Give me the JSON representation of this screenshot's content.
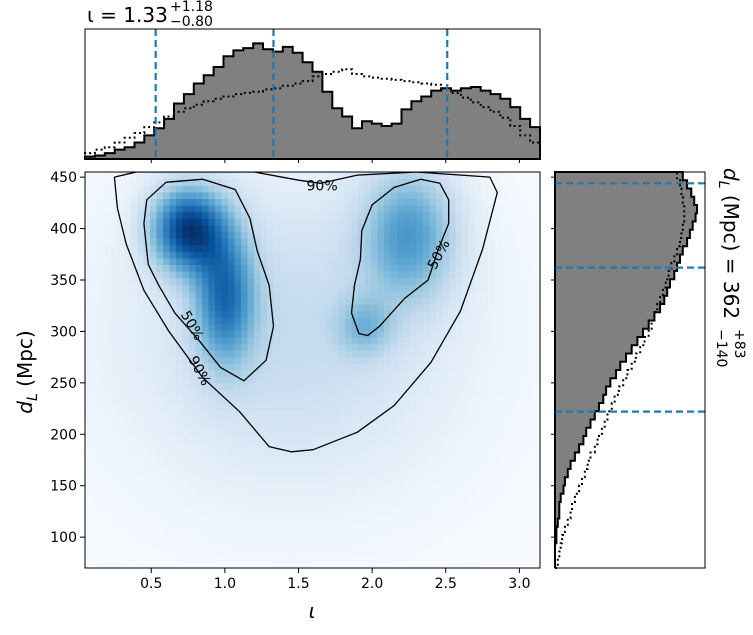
{
  "chart_data": [
    {
      "type": "heatmap",
      "panel": "joint",
      "xlabel": "ι",
      "ylabel_main": "d",
      "ylabel_sub": "L",
      "ylabel_unit": "(Mpc)",
      "xlim": [
        0.05,
        3.14
      ],
      "ylim": [
        70,
        455
      ],
      "x_ticks": [
        {
          "value": 0.5,
          "label": "0.5"
        },
        {
          "value": 1.0,
          "label": "1.0"
        },
        {
          "value": 1.5,
          "label": "1.5"
        },
        {
          "value": 2.0,
          "label": "2.0"
        },
        {
          "value": 2.5,
          "label": "2.5"
        },
        {
          "value": 3.0,
          "label": "3.0"
        }
      ],
      "y_ticks": [
        {
          "value": 100,
          "label": "100"
        },
        {
          "value": 150,
          "label": "150"
        },
        {
          "value": 200,
          "label": "200"
        },
        {
          "value": 250,
          "label": "250"
        },
        {
          "value": 300,
          "label": "300"
        },
        {
          "value": 350,
          "label": "350"
        },
        {
          "value": 400,
          "label": "400"
        },
        {
          "value": 450,
          "label": "450"
        }
      ],
      "colormap": "Blues",
      "density_modes": [
        {
          "x": 0.75,
          "y": 400,
          "sx": 0.17,
          "sy": 28,
          "w": 1.0
        },
        {
          "x": 1.0,
          "y": 335,
          "sx": 0.14,
          "sy": 45,
          "w": 0.7
        },
        {
          "x": 2.25,
          "y": 395,
          "sx": 0.22,
          "sy": 45,
          "w": 0.55
        },
        {
          "x": 1.95,
          "y": 305,
          "sx": 0.13,
          "sy": 20,
          "w": 0.3
        },
        {
          "x": 1.45,
          "y": 300,
          "sx": 0.75,
          "sy": 100,
          "w": 0.22
        }
      ],
      "contours": [
        {
          "level": "90%",
          "label_positions": [
            {
              "x": 1.66,
              "y": 442,
              "angle": 0
            },
            {
              "x": 0.83,
              "y": 262,
              "angle": 62
            }
          ],
          "path": [
            [
              0.25,
              450
            ],
            [
              0.27,
              420
            ],
            [
              0.33,
              385
            ],
            [
              0.45,
              340
            ],
            [
              0.62,
              300
            ],
            [
              0.85,
              255
            ],
            [
              1.1,
              222
            ],
            [
              1.3,
              188
            ],
            [
              1.45,
              183
            ],
            [
              1.6,
              185
            ],
            [
              1.9,
              202
            ],
            [
              2.15,
              228
            ],
            [
              2.4,
              270
            ],
            [
              2.6,
              320
            ],
            [
              2.75,
              380
            ],
            [
              2.85,
              435
            ],
            [
              2.8,
              450
            ],
            [
              2.3,
              455
            ],
            [
              1.9,
              452
            ],
            [
              1.65,
              444
            ],
            [
              1.5,
              447
            ],
            [
              1.2,
              455
            ],
            [
              0.4,
              455
            ],
            [
              0.25,
              450
            ]
          ]
        },
        {
          "level": "50%",
          "label_positions": [
            {
              "x": 0.78,
              "y": 306,
              "angle": 60
            },
            {
              "x": 2.45,
              "y": 375,
              "angle": -62
            }
          ],
          "path": [
            [
              0.45,
              405
            ],
            [
              0.48,
              365
            ],
            [
              0.55,
              345
            ],
            [
              0.66,
              318
            ],
            [
              0.82,
              292
            ],
            [
              0.97,
              265
            ],
            [
              1.13,
              252
            ],
            [
              1.28,
              272
            ],
            [
              1.33,
              305
            ],
            [
              1.3,
              345
            ],
            [
              1.22,
              378
            ],
            [
              1.17,
              410
            ],
            [
              1.07,
              438
            ],
            [
              0.85,
              448
            ],
            [
              0.6,
              445
            ],
            [
              0.47,
              428
            ],
            [
              0.45,
              405
            ]
          ]
        },
        {
          "level": "50%",
          "path": [
            [
              1.86,
              318
            ],
            [
              1.91,
              298
            ],
            [
              1.97,
              296
            ],
            [
              2.05,
              305
            ],
            [
              2.22,
              332
            ],
            [
              2.38,
              350
            ],
            [
              2.45,
              380
            ],
            [
              2.52,
              405
            ],
            [
              2.52,
              428
            ],
            [
              2.46,
              444
            ],
            [
              2.33,
              448
            ],
            [
              2.15,
              440
            ],
            [
              2.0,
              423
            ],
            [
              1.93,
              398
            ],
            [
              1.92,
              370
            ],
            [
              1.88,
              345
            ],
            [
              1.86,
              318
            ]
          ]
        }
      ]
    },
    {
      "type": "histogram",
      "panel": "top-marginal",
      "title_symbol": "ι",
      "title_value": "1.33",
      "title_plus": "+1.18",
      "title_minus": "−0.80",
      "quantile_lines": [
        0.53,
        1.33,
        2.51
      ],
      "quantile_color": "#1f77b4",
      "bin_edges": [
        0.05,
        3.14
      ],
      "bin_count": 46,
      "solid_heights": [
        0.02,
        0.03,
        0.05,
        0.08,
        0.1,
        0.14,
        0.2,
        0.26,
        0.34,
        0.47,
        0.55,
        0.64,
        0.71,
        0.78,
        0.87,
        0.92,
        0.94,
        0.98,
        0.93,
        0.91,
        0.95,
        0.9,
        0.82,
        0.74,
        0.57,
        0.43,
        0.36,
        0.26,
        0.32,
        0.3,
        0.28,
        0.3,
        0.42,
        0.49,
        0.53,
        0.58,
        0.6,
        0.58,
        0.6,
        0.61,
        0.58,
        0.55,
        0.51,
        0.44,
        0.34,
        0.27
      ],
      "dotted_heights": [
        0.05,
        0.08,
        0.1,
        0.14,
        0.18,
        0.22,
        0.27,
        0.31,
        0.36,
        0.4,
        0.43,
        0.46,
        0.49,
        0.51,
        0.53,
        0.55,
        0.56,
        0.57,
        0.59,
        0.6,
        0.62,
        0.64,
        0.66,
        0.7,
        0.72,
        0.74,
        0.76,
        0.72,
        0.7,
        0.69,
        0.68,
        0.67,
        0.66,
        0.65,
        0.64,
        0.63,
        0.6,
        0.56,
        0.52,
        0.48,
        0.44,
        0.4,
        0.35,
        0.28,
        0.2,
        0.14
      ]
    },
    {
      "type": "histogram",
      "panel": "right-marginal",
      "orientation": "horizontal",
      "side_label_main": "d",
      "side_label_sub": "L",
      "side_label_rest": "(Mpc) = 362",
      "side_label_plus": "+83",
      "side_label_minus": "−140",
      "quantile_lines": [
        222,
        362,
        444
      ],
      "quantile_color": "#1f77b4",
      "bin_edges": [
        70,
        455
      ],
      "bin_count": 48,
      "solid_widths": [
        0.0,
        0.0,
        0.0,
        0.01,
        0.01,
        0.02,
        0.03,
        0.03,
        0.04,
        0.06,
        0.07,
        0.09,
        0.11,
        0.14,
        0.17,
        0.2,
        0.22,
        0.25,
        0.28,
        0.31,
        0.34,
        0.36,
        0.39,
        0.43,
        0.46,
        0.5,
        0.54,
        0.58,
        0.62,
        0.66,
        0.7,
        0.74,
        0.77,
        0.79,
        0.81,
        0.84,
        0.86,
        0.88,
        0.9,
        0.93,
        0.95,
        0.97,
        0.99,
        1.0,
        0.98,
        0.96,
        0.93,
        0.9
      ],
      "dotted_widths": [
        0.02,
        0.03,
        0.04,
        0.05,
        0.07,
        0.09,
        0.11,
        0.12,
        0.14,
        0.17,
        0.19,
        0.21,
        0.23,
        0.25,
        0.28,
        0.3,
        0.33,
        0.35,
        0.37,
        0.4,
        0.42,
        0.45,
        0.48,
        0.51,
        0.54,
        0.57,
        0.6,
        0.63,
        0.66,
        0.68,
        0.7,
        0.72,
        0.74,
        0.76,
        0.78,
        0.8,
        0.82,
        0.84,
        0.86,
        0.88,
        0.89,
        0.9,
        0.91,
        0.91,
        0.9,
        0.89,
        0.88,
        0.86
      ]
    }
  ]
}
